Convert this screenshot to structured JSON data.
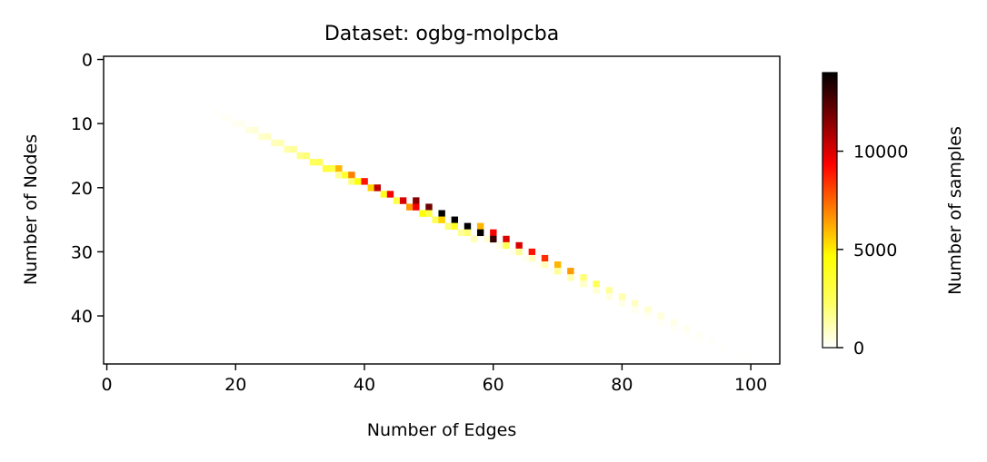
{
  "chart_data": {
    "type": "heatmap",
    "title": "Dataset: ogbg-molpcba",
    "xlabel": "Number of Edges",
    "ylabel": "Number of Nodes",
    "xlim": [
      -0.5,
      104.5
    ],
    "ylim": [
      47.5,
      -0.5
    ],
    "y_inverted": true,
    "xticks": [
      0,
      20,
      40,
      60,
      80,
      100
    ],
    "yticks": [
      0,
      10,
      20,
      30,
      40
    ],
    "colormap": [
      "#ffffff",
      "#ffff60",
      "#ffff00",
      "#ff8000",
      "#ff0000",
      "#800000",
      "#000000"
    ],
    "colorbar": {
      "label": "Number of samples",
      "range": [
        0,
        14000
      ],
      "ticks": [
        0,
        5000,
        10000
      ]
    },
    "cells": [
      [
        16,
        7,
        40
      ],
      [
        17,
        8,
        60
      ],
      [
        18,
        9,
        100
      ],
      [
        19,
        9,
        120
      ],
      [
        20,
        10,
        200
      ],
      [
        21,
        10,
        250
      ],
      [
        22,
        11,
        450
      ],
      [
        23,
        11,
        600
      ],
      [
        24,
        12,
        700
      ],
      [
        25,
        12,
        900
      ],
      [
        26,
        13,
        1000
      ],
      [
        27,
        13,
        1100
      ],
      [
        28,
        14,
        1300
      ],
      [
        29,
        14,
        1500
      ],
      [
        30,
        15,
        1700
      ],
      [
        31,
        15,
        2000
      ],
      [
        32,
        16,
        2300
      ],
      [
        33,
        16,
        2600
      ],
      [
        34,
        17,
        3200
      ],
      [
        35,
        17,
        3000
      ],
      [
        36,
        17,
        6000
      ],
      [
        36,
        18,
        1500
      ],
      [
        37,
        18,
        3500
      ],
      [
        38,
        18,
        7000
      ],
      [
        38,
        19,
        2000
      ],
      [
        39,
        19,
        4500
      ],
      [
        40,
        19,
        9000
      ],
      [
        41,
        20,
        5500
      ],
      [
        42,
        20,
        10500
      ],
      [
        43,
        21,
        4000
      ],
      [
        44,
        21,
        9500
      ],
      [
        45,
        22,
        3000
      ],
      [
        46,
        22,
        10000
      ],
      [
        47,
        23,
        6500
      ],
      [
        48,
        22,
        11500
      ],
      [
        48,
        23,
        9500
      ],
      [
        49,
        24,
        4500
      ],
      [
        50,
        23,
        12000
      ],
      [
        50,
        24,
        3000
      ],
      [
        51,
        25,
        2500
      ],
      [
        52,
        24,
        14000
      ],
      [
        52,
        25,
        5500
      ],
      [
        53,
        26,
        2000
      ],
      [
        54,
        25,
        14000
      ],
      [
        54,
        26,
        3800
      ],
      [
        55,
        27,
        1500
      ],
      [
        56,
        26,
        14000
      ],
      [
        56,
        27,
        2000
      ],
      [
        57,
        28,
        1000
      ],
      [
        58,
        26,
        6000
      ],
      [
        58,
        27,
        14000
      ],
      [
        59,
        28,
        600
      ],
      [
        60,
        27,
        9500
      ],
      [
        60,
        28,
        13000
      ],
      [
        61,
        29,
        400
      ],
      [
        62,
        28,
        10000
      ],
      [
        62,
        29,
        2500
      ],
      [
        63,
        30,
        300
      ],
      [
        64,
        29,
        10000
      ],
      [
        64,
        30,
        1500
      ],
      [
        65,
        31,
        200
      ],
      [
        66,
        30,
        9000
      ],
      [
        66,
        31,
        900
      ],
      [
        67,
        32,
        150
      ],
      [
        68,
        31,
        8500
      ],
      [
        68,
        32,
        1000
      ],
      [
        69,
        33,
        120
      ],
      [
        70,
        32,
        6000
      ],
      [
        70,
        33,
        1500
      ],
      [
        72,
        33,
        6500
      ],
      [
        72,
        34,
        1200
      ],
      [
        74,
        34,
        2000
      ],
      [
        74,
        35,
        800
      ],
      [
        76,
        35,
        2500
      ],
      [
        76,
        36,
        600
      ],
      [
        78,
        36,
        1500
      ],
      [
        78,
        37,
        450
      ],
      [
        80,
        37,
        1200
      ],
      [
        80,
        38,
        350
      ],
      [
        82,
        38,
        900
      ],
      [
        82,
        39,
        250
      ],
      [
        84,
        39,
        700
      ],
      [
        84,
        40,
        180
      ],
      [
        86,
        40,
        550
      ],
      [
        86,
        41,
        140
      ],
      [
        88,
        41,
        380
      ],
      [
        88,
        42,
        100
      ],
      [
        90,
        42,
        250
      ],
      [
        90,
        43,
        80
      ],
      [
        92,
        43,
        150
      ],
      [
        92,
        44,
        60
      ],
      [
        94,
        44,
        80
      ],
      [
        96,
        45,
        50
      ],
      [
        98,
        46,
        30
      ]
    ]
  }
}
